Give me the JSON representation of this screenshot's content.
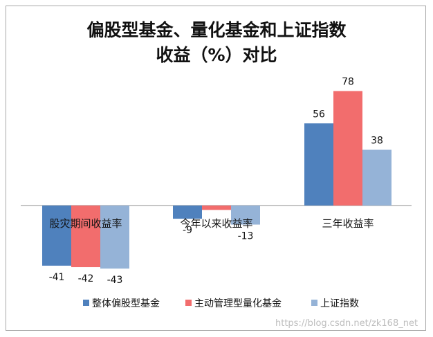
{
  "chart_data": {
    "type": "bar",
    "title_lines": [
      "偏股型基金、量化基金和上证指数",
      "收益（%）对比"
    ],
    "categories": [
      "股灾期间收益率",
      "今年以来收益率",
      "三年收益率"
    ],
    "series": [
      {
        "name": "整体偏股型基金",
        "values": [
          -41,
          -9,
          56
        ],
        "color": "#4f81bd"
      },
      {
        "name": "主动管理型量化基金",
        "values": [
          -42,
          -3,
          78
        ],
        "color": "#f26d6d"
      },
      {
        "name": "上证指数",
        "values": [
          -43,
          -13,
          38
        ],
        "color": "#95b3d7"
      }
    ],
    "data_labels": [
      [
        "-41",
        "-42",
        "-43"
      ],
      [
        "-9",
        "",
        "-13"
      ],
      [
        "56",
        "78",
        "38"
      ]
    ],
    "legend_position": "bottom",
    "grid": false
  },
  "watermark": "https://blog.csdn.net/zk168_net"
}
